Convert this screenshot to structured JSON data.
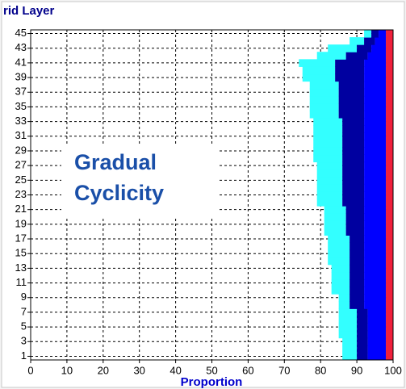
{
  "chart_data": {
    "type": "stacked_barh",
    "title": "rid Layer",
    "xlabel": "Proportion",
    "annotation": [
      "Gradual",
      "Cyclicity"
    ],
    "categories": [
      1,
      null,
      3,
      null,
      5,
      null,
      7,
      null,
      9,
      null,
      11,
      null,
      13,
      null,
      15,
      null,
      17,
      null,
      19,
      null,
      21,
      null,
      23,
      null,
      25,
      null,
      27,
      null,
      29,
      null,
      31,
      null,
      33,
      null,
      35,
      null,
      37,
      null,
      39,
      null,
      41,
      null,
      43,
      null,
      45
    ],
    "xlim": [
      0,
      100
    ],
    "xticks": [
      0,
      10,
      20,
      30,
      40,
      50,
      60,
      70,
      80,
      90,
      100
    ],
    "grid": true,
    "series": [
      {
        "color": "none",
        "values": [
          86,
          86,
          86,
          85,
          85,
          85,
          85,
          85,
          85,
          83,
          83,
          83,
          83,
          82,
          82,
          82,
          82,
          81,
          81,
          81,
          81,
          79,
          79,
          79,
          79,
          79,
          79,
          78,
          78,
          78,
          78,
          78,
          78,
          77,
          77,
          77,
          77,
          77,
          75,
          75,
          74,
          79,
          82,
          88,
          92
        ]
      },
      {
        "color": "#33ffff",
        "values": [
          4,
          4,
          4,
          5,
          5,
          5,
          5,
          3,
          3,
          5,
          5,
          5,
          5,
          6,
          6,
          6,
          6,
          6,
          6,
          6,
          6,
          7,
          7,
          7,
          7,
          7,
          7,
          8,
          8,
          8,
          8,
          8,
          8,
          8,
          8,
          8,
          8,
          8,
          9,
          9,
          10,
          8,
          8,
          4,
          2
        ]
      },
      {
        "color": "#0000a0",
        "values": [
          3,
          3,
          3,
          3,
          3,
          3,
          3,
          4,
          4,
          4,
          4,
          4,
          4,
          4,
          4,
          4,
          4,
          5,
          5,
          5,
          5,
          6,
          6,
          6,
          6,
          6,
          6,
          6,
          6,
          6,
          6,
          6,
          6,
          7,
          7,
          7,
          7,
          7,
          8,
          8,
          8,
          6,
          4,
          3,
          2
        ]
      },
      {
        "color": "#0000ff",
        "values": [
          5,
          5,
          5,
          5,
          5,
          5,
          5,
          6,
          6,
          6,
          6,
          6,
          6,
          6,
          6,
          6,
          6,
          6,
          6,
          6,
          6,
          6,
          6,
          6,
          6,
          6,
          6,
          6,
          6,
          6,
          6,
          6,
          6,
          6,
          6,
          6,
          6,
          6,
          6,
          6,
          6,
          5,
          4,
          3,
          2
        ]
      },
      {
        "color": "#f0203c",
        "values": [
          2,
          2,
          2,
          2,
          2,
          2,
          2,
          2,
          2,
          2,
          2,
          2,
          2,
          2,
          2,
          2,
          2,
          2,
          2,
          2,
          2,
          2,
          2,
          2,
          2,
          2,
          2,
          2,
          2,
          2,
          2,
          2,
          2,
          2,
          2,
          2,
          2,
          2,
          2,
          2,
          2,
          2,
          2,
          2,
          2
        ]
      }
    ]
  }
}
